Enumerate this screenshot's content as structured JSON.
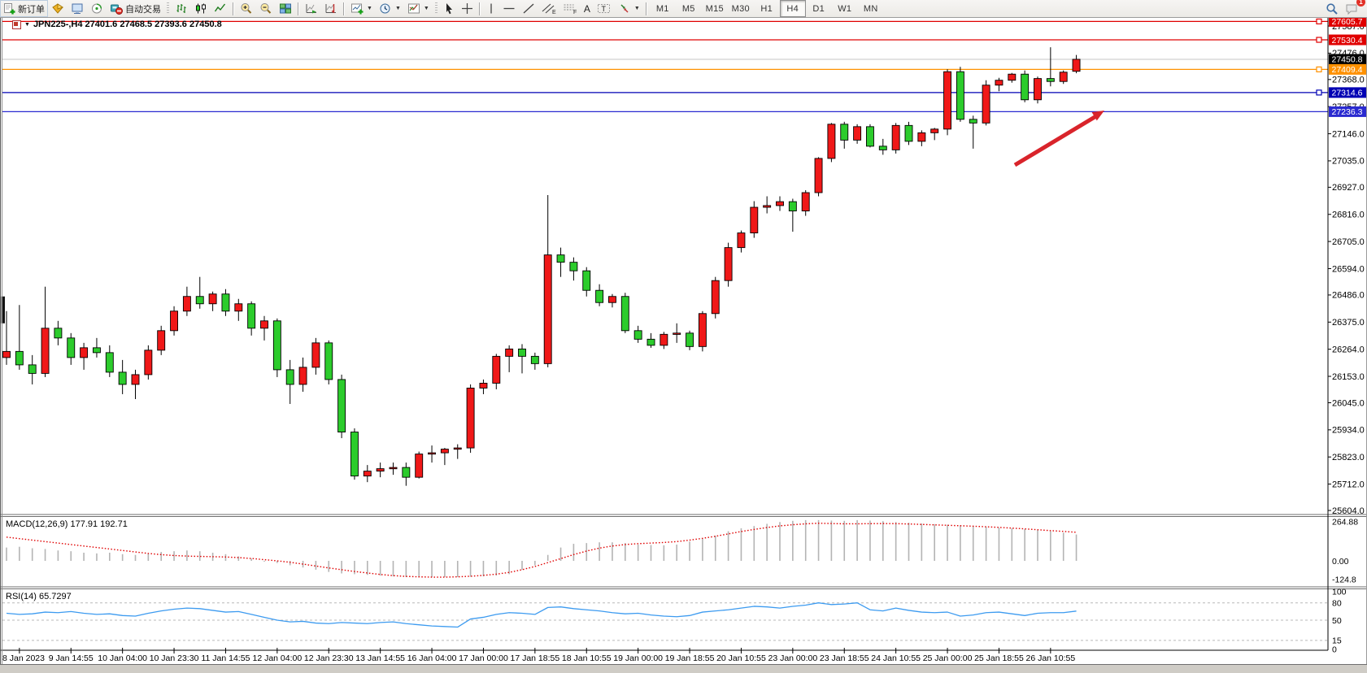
{
  "toolbar": {
    "new_order_label": "新订单",
    "autotrade_label": "自动交易",
    "timeframes": [
      "M1",
      "M5",
      "M15",
      "M30",
      "H1",
      "H4",
      "D1",
      "W1",
      "MN"
    ],
    "active_timeframe": "H4",
    "notification_count": "1",
    "icon_names": [
      "new-order-icon",
      "market-watch-icon",
      "data-window-icon",
      "navigator-icon",
      "autotrade-icon",
      "bar-chart-icon",
      "candlestick-chart-icon",
      "line-chart-icon",
      "zoom-in-icon",
      "zoom-out-icon",
      "tile-windows-icon",
      "auto-scroll-icon",
      "chart-shift-icon",
      "indicators-icon",
      "periods-icon",
      "templates-icon",
      "cursor-icon",
      "crosshair-icon",
      "vertical-line-icon",
      "horizontal-line-icon",
      "trendline-icon",
      "equidistant-channel-icon",
      "fibonacci-icon",
      "text-icon",
      "text-label-icon",
      "arrows-icon",
      "search-icon",
      "chat-icon"
    ]
  },
  "chart": {
    "title": "JPN225-,H4  27401.6 27468.5 27393.6 27450.8",
    "symbol": "JPN225-",
    "period": "H4"
  },
  "indicators": {
    "macd": {
      "label": "MACD(12,26,9) 177.91 192.71",
      "axis_ticks": [
        "264.88",
        "0.00",
        "-124.8"
      ]
    },
    "rsi": {
      "label": "RSI(14) 65.7297",
      "axis_ticks": [
        "100",
        "80",
        "50",
        "15",
        "0"
      ],
      "level_lines": [
        80,
        50,
        15
      ]
    }
  },
  "chart_data": {
    "type": "candlestick",
    "title": "JPN225-,H4",
    "up_color": "#f01818",
    "down_color": "#2ccc2c",
    "wick_color": "#000000",
    "last_candle_ohlc": {
      "open": 27401.6,
      "high": 27468.5,
      "low": 27393.6,
      "close": 27450.8
    },
    "price_axis_ticks": [
      "27587.0",
      "27476.0",
      "27368.0",
      "27257.0",
      "27146.0",
      "27035.0",
      "26927.0",
      "26816.0",
      "26705.0",
      "26594.0",
      "26486.0",
      "26375.0",
      "26264.0",
      "26153.0",
      "26045.0",
      "25934.0",
      "25823.0",
      "25712.0",
      "25604.0"
    ],
    "ylim": [
      25604.0,
      27617.0
    ],
    "time_axis_labels": [
      "8 Jan 2023",
      "9 Jan 14:55",
      "10 Jan 04:00",
      "10 Jan 23:30",
      "11 Jan 14:55",
      "12 Jan 04:00",
      "12 Jan 23:30",
      "13 Jan 14:55",
      "16 Jan 04:00",
      "17 Jan 00:00",
      "17 Jan 18:55",
      "18 Jan 10:55",
      "19 Jan 00:00",
      "19 Jan 18:55",
      "20 Jan 10:55",
      "23 Jan 00:00",
      "23 Jan 18:55",
      "24 Jan 10:55",
      "25 Jan 00:00",
      "25 Jan 18:55",
      "26 Jan 10:55"
    ],
    "x_label_every_n_candles": 4,
    "horizontal_lines": [
      {
        "price": 27605.7,
        "label": "27605.7",
        "color": "#e00000",
        "badge_bg": "#e00000",
        "handle": true
      },
      {
        "price": 27530.4,
        "label": "27530.4",
        "color": "#e00000",
        "badge_bg": "#e00000",
        "handle": true
      },
      {
        "price": 27450.8,
        "label": "27450.8",
        "color": "#c4c4c4",
        "badge_bg": "#000000",
        "handle": false,
        "role": "current-price"
      },
      {
        "price": 27409.4,
        "label": "27409.4",
        "color": "#ff9100",
        "badge_bg": "#ff9100",
        "handle": true
      },
      {
        "price": 27314.6,
        "label": "27314.6",
        "color": "#0000b4",
        "badge_bg": "#0000b4",
        "handle": true
      },
      {
        "price": 27236.3,
        "label": "27236.3",
        "color": "#2a2ad0",
        "badge_bg": "#2a2ad0",
        "handle": false
      }
    ],
    "partial_candle_left_edge": {
      "high": 26480,
      "low": 26370
    },
    "candles": [
      [
        26230,
        26420,
        26200,
        26255
      ],
      [
        26255,
        26445,
        26180,
        26200
      ],
      [
        26200,
        26240,
        26120,
        26165
      ],
      [
        26165,
        26520,
        26150,
        26350
      ],
      [
        26350,
        26380,
        26280,
        26310
      ],
      [
        26310,
        26330,
        26200,
        26230
      ],
      [
        26230,
        26290,
        26180,
        26270
      ],
      [
        26270,
        26310,
        26230,
        26250
      ],
      [
        26250,
        26280,
        26150,
        26170
      ],
      [
        26170,
        26220,
        26080,
        26120
      ],
      [
        26120,
        26180,
        26060,
        26160
      ],
      [
        26160,
        26280,
        26140,
        26260
      ],
      [
        26260,
        26360,
        26240,
        26340
      ],
      [
        26340,
        26440,
        26320,
        26420
      ],
      [
        26420,
        26520,
        26400,
        26480
      ],
      [
        26480,
        26560,
        26430,
        26450
      ],
      [
        26450,
        26500,
        26420,
        26490
      ],
      [
        26490,
        26510,
        26400,
        26420
      ],
      [
        26420,
        26470,
        26380,
        26450
      ],
      [
        26450,
        26460,
        26320,
        26350
      ],
      [
        26350,
        26400,
        26300,
        26380
      ],
      [
        26380,
        26390,
        26150,
        26180
      ],
      [
        26180,
        26220,
        26040,
        26120
      ],
      [
        26120,
        26230,
        26090,
        26190
      ],
      [
        26190,
        26310,
        26160,
        26290
      ],
      [
        26290,
        26300,
        26120,
        26140
      ],
      [
        26140,
        26160,
        25900,
        25925
      ],
      [
        25925,
        25940,
        25730,
        25745
      ],
      [
        25745,
        25790,
        25720,
        25765
      ],
      [
        25765,
        25800,
        25740,
        25775
      ],
      [
        25775,
        25800,
        25750,
        25780
      ],
      [
        25780,
        25800,
        25705,
        25740
      ],
      [
        25740,
        25845,
        25735,
        25835
      ],
      [
        25835,
        25870,
        25800,
        25840
      ],
      [
        25840,
        25860,
        25790,
        25855
      ],
      [
        25855,
        25875,
        25815,
        25860
      ],
      [
        25860,
        26120,
        25840,
        26105
      ],
      [
        26105,
        26140,
        26080,
        26125
      ],
      [
        26125,
        26245,
        26100,
        26235
      ],
      [
        26235,
        26280,
        26170,
        26265
      ],
      [
        26265,
        26285,
        26165,
        26235
      ],
      [
        26235,
        26250,
        26180,
        26205
      ],
      [
        26205,
        26895,
        26190,
        26650
      ],
      [
        26650,
        26680,
        26560,
        26620
      ],
      [
        26620,
        26640,
        26545,
        26585
      ],
      [
        26585,
        26600,
        26480,
        26505
      ],
      [
        26505,
        26530,
        26440,
        26455
      ],
      [
        26455,
        26490,
        26435,
        26480
      ],
      [
        26480,
        26495,
        26330,
        26340
      ],
      [
        26340,
        26360,
        26290,
        26305
      ],
      [
        26305,
        26330,
        26270,
        26280
      ],
      [
        26280,
        26335,
        26265,
        26325
      ],
      [
        26325,
        26370,
        26290,
        26330
      ],
      [
        26330,
        26340,
        26260,
        26275
      ],
      [
        26275,
        26420,
        26255,
        26410
      ],
      [
        26410,
        26560,
        26390,
        26545
      ],
      [
        26545,
        26700,
        26520,
        26680
      ],
      [
        26680,
        26750,
        26660,
        26740
      ],
      [
        26740,
        26870,
        26720,
        26845
      ],
      [
        26845,
        26890,
        26820,
        26852
      ],
      [
        26852,
        26890,
        26830,
        26868
      ],
      [
        26868,
        26880,
        26745,
        26830
      ],
      [
        26830,
        26915,
        26810,
        26905
      ],
      [
        26905,
        27050,
        26890,
        27045
      ],
      [
        27045,
        27190,
        27030,
        27185
      ],
      [
        27185,
        27195,
        27085,
        27120
      ],
      [
        27120,
        27185,
        27105,
        27175
      ],
      [
        27175,
        27185,
        27090,
        27095
      ],
      [
        27095,
        27125,
        27060,
        27080
      ],
      [
        27080,
        27190,
        27065,
        27180
      ],
      [
        27180,
        27195,
        27100,
        27115
      ],
      [
        27115,
        27160,
        27095,
        27150
      ],
      [
        27150,
        27170,
        27120,
        27165
      ],
      [
        27165,
        27410,
        27140,
        27400
      ],
      [
        27400,
        27420,
        27195,
        27205
      ],
      [
        27205,
        27220,
        27085,
        27190
      ],
      [
        27190,
        27365,
        27180,
        27345
      ],
      [
        27345,
        27375,
        27320,
        27365
      ],
      [
        27365,
        27395,
        27355,
        27390
      ],
      [
        27390,
        27405,
        27275,
        27285
      ],
      [
        27285,
        27380,
        27270,
        27372
      ],
      [
        27372,
        27500,
        27340,
        27360
      ],
      [
        27360,
        27405,
        27350,
        27398
      ],
      [
        27401.6,
        27468.5,
        27393.6,
        27450.8
      ]
    ],
    "studies": [
      {
        "name": "MACD",
        "params": "12,26,9",
        "current_values": [
          "177.91",
          "192.71"
        ],
        "axis_ticks": [
          264.88,
          0.0,
          -124.8
        ],
        "histogram": [
          90,
          95,
          85,
          80,
          70,
          65,
          55,
          50,
          55,
          45,
          40,
          50,
          60,
          65,
          70,
          65,
          55,
          45,
          30,
          15,
          0,
          -15,
          -30,
          -45,
          -60,
          -75,
          -85,
          -90,
          -95,
          -100,
          -105,
          -110,
          -112,
          -110,
          -110,
          -110,
          -108,
          -105,
          -100,
          -90,
          -60,
          -30,
          40,
          90,
          115,
          120,
          125,
          125,
          120,
          110,
          107,
          105,
          110,
          130,
          150,
          170,
          200,
          220,
          235,
          250,
          262,
          270,
          275,
          275,
          272,
          270,
          275,
          272,
          268,
          262,
          258,
          252,
          248,
          244,
          240,
          235,
          230,
          225,
          220,
          215,
          208,
          200,
          190,
          177.91
        ],
        "signal": [
          160,
          150,
          140,
          130,
          120,
          110,
          100,
          90,
          80,
          70,
          60,
          50,
          42,
          36,
          32,
          30,
          28,
          26,
          22,
          16,
          8,
          0,
          -10,
          -22,
          -35,
          -48,
          -60,
          -72,
          -82,
          -92,
          -100,
          -105,
          -108,
          -110,
          -110,
          -108,
          -104,
          -98,
          -90,
          -78,
          -60,
          -38,
          -12,
          15,
          42,
          66,
          86,
          100,
          110,
          116,
          120,
          124,
          130,
          140,
          152,
          166,
          182,
          198,
          212,
          225,
          236,
          244,
          250,
          254,
          252,
          250,
          250,
          251,
          252,
          251,
          249,
          246,
          243,
          240,
          237,
          234,
          230,
          226,
          221,
          216,
          210,
          204,
          199,
          192.71
        ]
      },
      {
        "name": "RSI",
        "params": "14",
        "current_value": "65.7297",
        "axis_ticks": [
          100,
          80,
          50,
          15,
          0
        ],
        "levels": [
          80,
          50,
          15
        ],
        "line": [
          62,
          60,
          61,
          64,
          63,
          65,
          62,
          60,
          61,
          58,
          57,
          62,
          66,
          69,
          71,
          70,
          67,
          64,
          65,
          60,
          55,
          50,
          47,
          48,
          45,
          44,
          46,
          45,
          44,
          46,
          47,
          44,
          42,
          40,
          39,
          38,
          52,
          55,
          60,
          63,
          62,
          60,
          72,
          73,
          70,
          68,
          66,
          63,
          61,
          62,
          59,
          57,
          56,
          58,
          64,
          66,
          68,
          71,
          74,
          73,
          71,
          74,
          76,
          80,
          77,
          78,
          80,
          68,
          66,
          71,
          67,
          64,
          63,
          64,
          57,
          59,
          63,
          64,
          61,
          58,
          62,
          63,
          63,
          65.7297
        ]
      }
    ],
    "annotation_arrow": {
      "from": [
        1248,
        203
      ],
      "to": [
        1356,
        138
      ],
      "color": "#d9242b"
    }
  }
}
